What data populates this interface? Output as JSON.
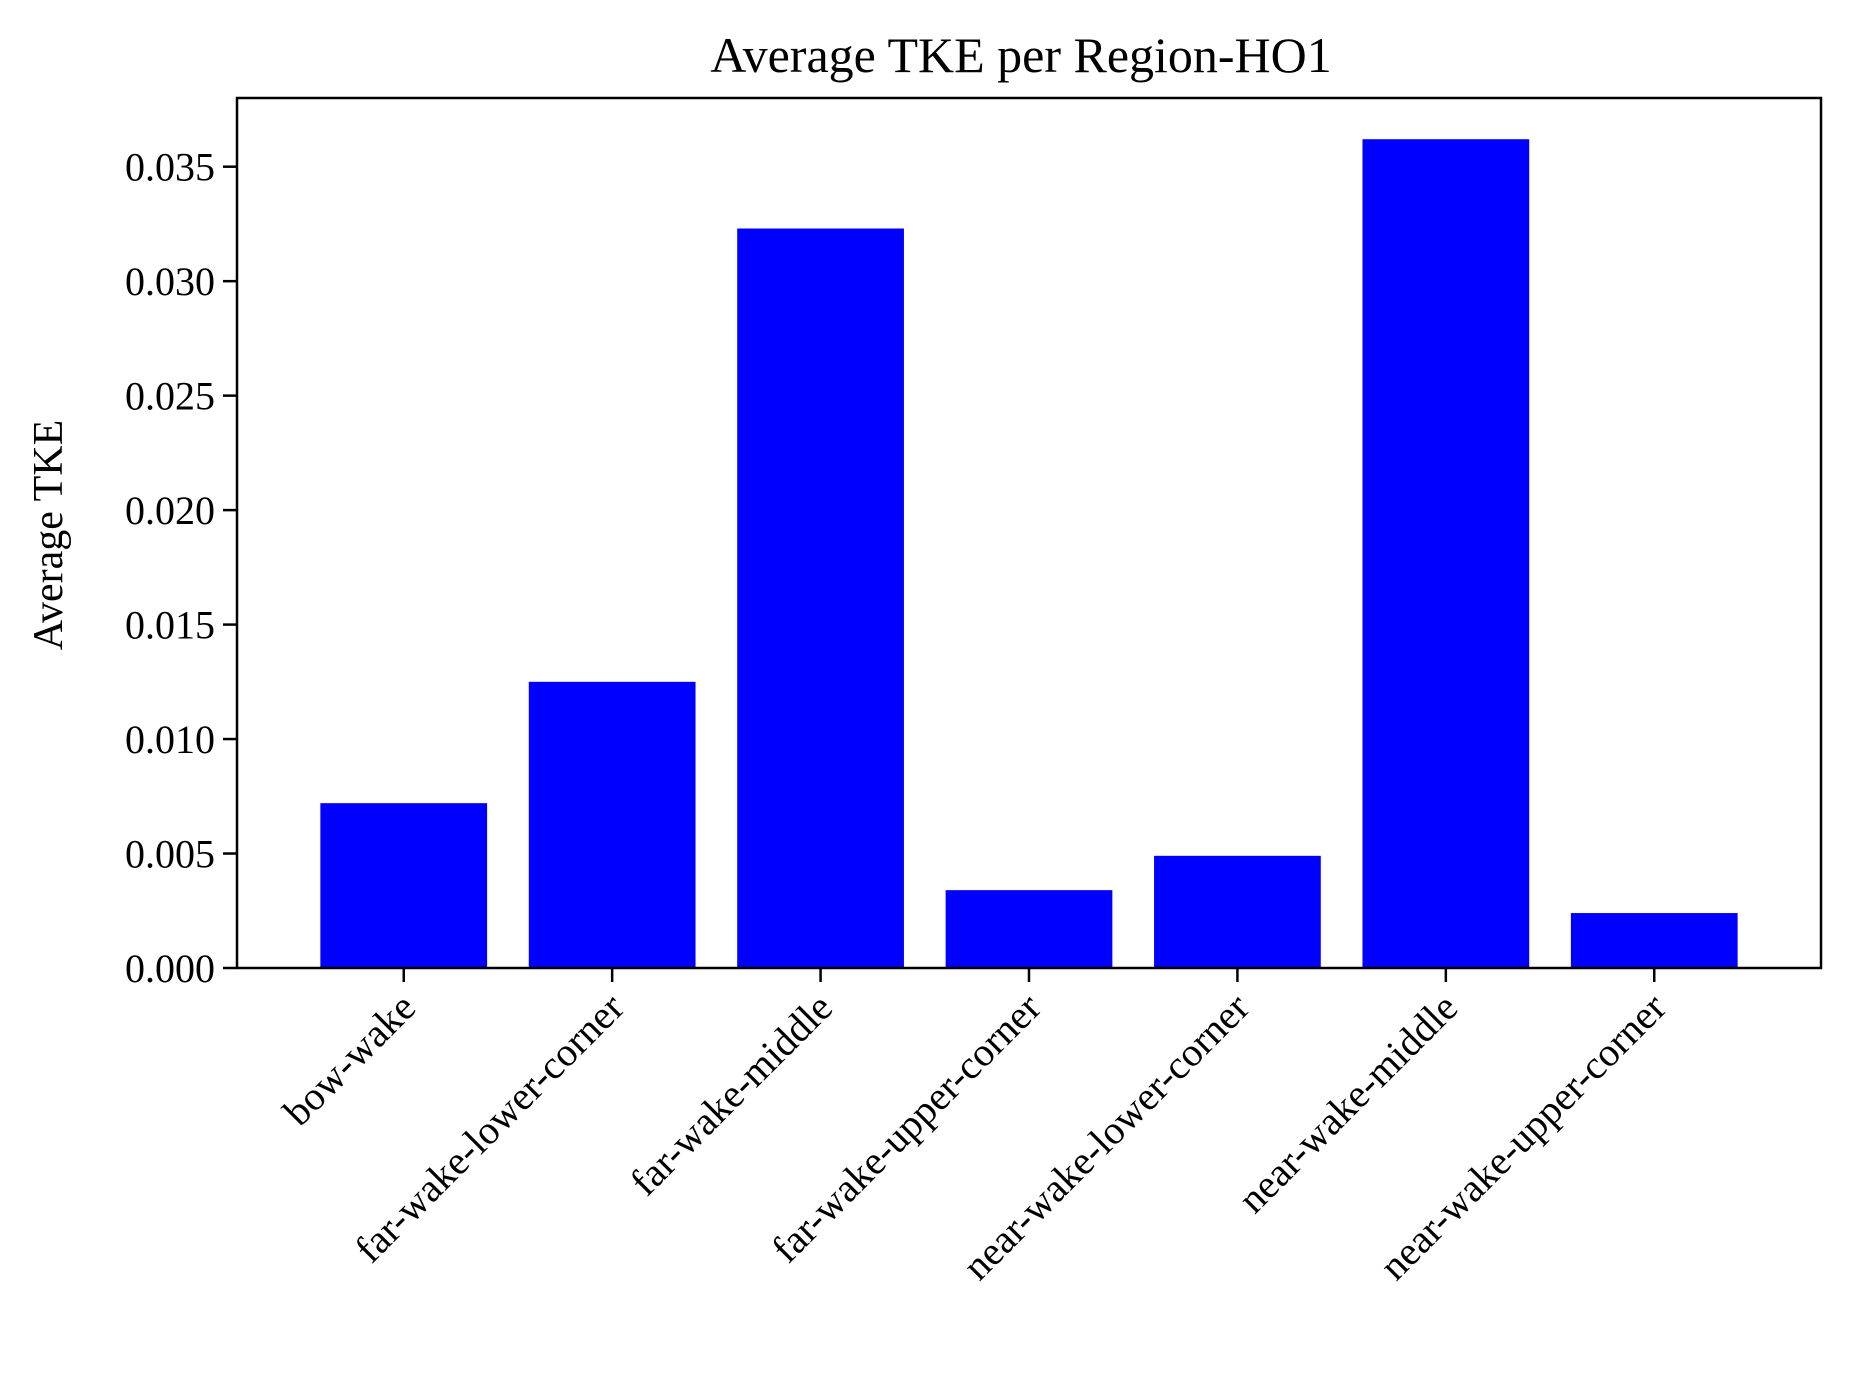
{
  "chart_data": {
    "type": "bar",
    "title": "Average TKE per Region-HO1",
    "xlabel": "",
    "ylabel": "Average TKE",
    "categories": [
      "bow-wake",
      "far-wake-lower-corner",
      "far-wake-middle",
      "far-wake-upper-corner",
      "near-wake-lower-corner",
      "near-wake-middle",
      "near-wake-upper-corner"
    ],
    "values": [
      0.0072,
      0.0125,
      0.0323,
      0.0034,
      0.0049,
      0.0362,
      0.0024
    ],
    "ylim": [
      0,
      0.038
    ],
    "yticks": [
      "0.000",
      "0.005",
      "0.010",
      "0.015",
      "0.020",
      "0.025",
      "0.030",
      "0.035"
    ],
    "ytick_values": [
      0,
      0.005,
      0.01,
      0.015,
      0.02,
      0.025,
      0.03,
      0.035
    ],
    "bar_color": "#0000ff",
    "grid": false,
    "legend": false
  }
}
